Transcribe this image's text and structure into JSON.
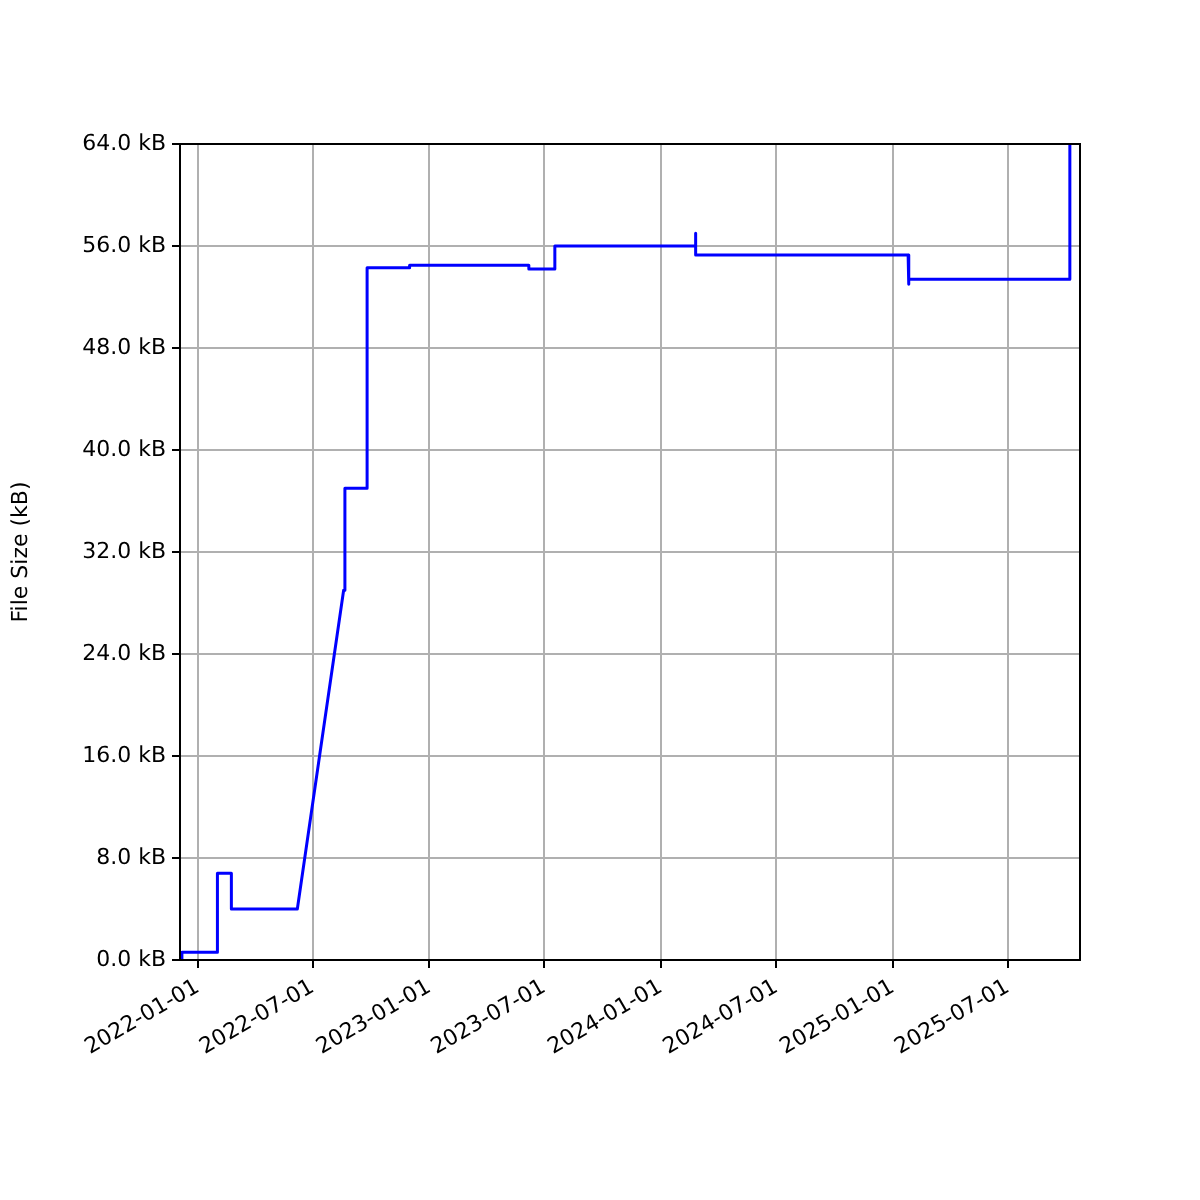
{
  "chart_data": {
    "type": "line",
    "ylabel": "File Size (kB)",
    "xlim": [
      "2021-12-04",
      "2025-10-23"
    ],
    "xticks": [
      "2022-01-01",
      "2022-07-01",
      "2023-01-01",
      "2023-07-01",
      "2024-01-01",
      "2024-07-01",
      "2025-01-01",
      "2025-07-01"
    ],
    "ylim": [
      0,
      64
    ],
    "yticks": [
      {
        "value": 0,
        "label": "0.0 kB"
      },
      {
        "value": 8,
        "label": "8.0 kB"
      },
      {
        "value": 16,
        "label": "16.0 kB"
      },
      {
        "value": 24,
        "label": "24.0 kB"
      },
      {
        "value": 32,
        "label": "32.0 kB"
      },
      {
        "value": 40,
        "label": "40.0 kB"
      },
      {
        "value": 48,
        "label": "48.0 kB"
      },
      {
        "value": 56,
        "label": "56.0 kB"
      },
      {
        "value": 64,
        "label": "64.0 kB"
      }
    ],
    "grid": true,
    "legend": false,
    "marker": "none",
    "line_style": "solid",
    "series": [
      {
        "color": "#0000ff",
        "x": [
          "2021-12-07",
          "2021-12-07",
          "2022-02-01",
          "2022-02-01",
          "2022-02-23",
          "2022-02-23",
          "2022-06-07",
          "2022-08-19",
          "2022-08-21",
          "2022-08-21",
          "2022-09-25",
          "2022-09-25",
          "2022-12-01",
          "2022-12-01",
          "2023-06-07",
          "2023-06-07",
          "2023-07-18",
          "2023-07-18",
          "2024-02-25",
          "2024-02-25",
          "2024-02-25",
          "2025-01-25",
          "2025-01-25",
          "2025-01-27",
          "2025-10-07",
          "2025-10-07"
        ],
        "values": [
          0,
          0.6,
          0.6,
          6.8,
          6.8,
          4.0,
          4.0,
          29.0,
          29.0,
          37.0,
          37.0,
          54.3,
          54.3,
          54.5,
          54.5,
          54.2,
          54.2,
          56.0,
          56.0,
          57.0,
          55.3,
          55.3,
          53.0,
          53.4,
          53.4,
          64.0
        ]
      }
    ]
  }
}
